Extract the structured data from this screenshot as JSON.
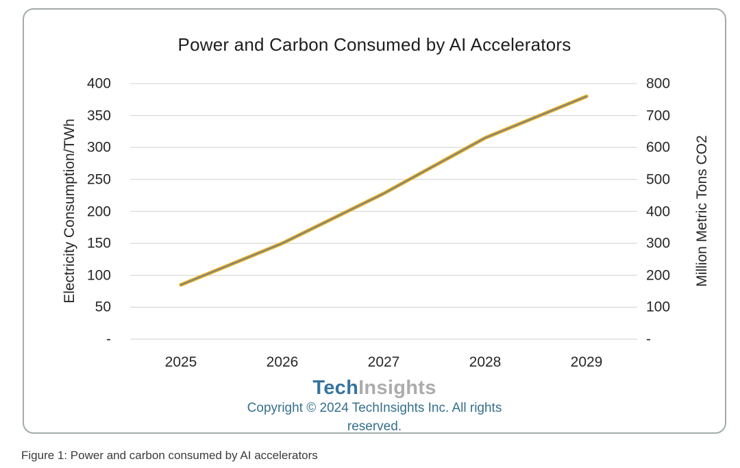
{
  "figure": {
    "caption": "Figure 1: Power and carbon consumed by AI accelerators"
  },
  "card": {
    "title": "Power and Carbon Consumed by AI Accelerators",
    "logo": {
      "part1": "Tech",
      "part2": "Insights"
    },
    "copyright": "Copyright © 2024 TechInsights Inc.  All rights reserved."
  },
  "chart_data": {
    "type": "line",
    "title": "Power and Carbon Consumed by AI Accelerators",
    "categories": [
      "2025",
      "2026",
      "2027",
      "2028",
      "2029"
    ],
    "series": [
      {
        "name": "Electricity Consumption/TWh",
        "axis": "left",
        "values": [
          85,
          150,
          228,
          315,
          380
        ],
        "color": "#edb723"
      },
      {
        "name": "Million Metric Tons CO2",
        "axis": "right",
        "values": [
          170,
          300,
          456,
          630,
          760
        ],
        "color": "#7f7f7f"
      }
    ],
    "left_axis": {
      "label": "Electricity Consumption/TWh",
      "min": 0,
      "max": 400,
      "step": 50,
      "ticks": [
        "-",
        "50",
        "100",
        "150",
        "200",
        "250",
        "300",
        "350",
        "400"
      ]
    },
    "right_axis": {
      "label": "Million Metric Tons CO2",
      "min": 0,
      "max": 800,
      "step": 100,
      "ticks": [
        "-",
        "100",
        "200",
        "300",
        "400",
        "500",
        "600",
        "700",
        "800"
      ]
    },
    "grid": true,
    "legend": "none",
    "note": "The two series overlap exactly (right axis is 2x left axis scale)."
  },
  "colors": {
    "grid": "#d9d9d9",
    "card_border": "#a2aba6",
    "line_gold": "#edb723",
    "line_gray": "#7f7f7f",
    "logo_tech": "#36749e",
    "logo_insights": "#acacac",
    "copyright_text": "#336f8c"
  }
}
